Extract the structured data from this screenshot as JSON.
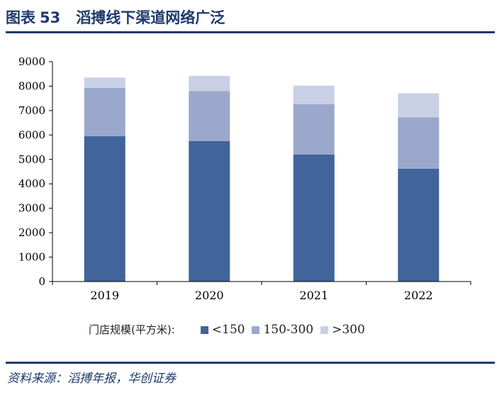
{
  "figure": {
    "label": "图表",
    "number": "53",
    "title": "滔搏线下渠道网络广泛"
  },
  "legend": {
    "title": "门店规模(平方米):",
    "items": [
      "<150",
      "150-300",
      ">300"
    ]
  },
  "source": "资料来源：滔搏年报，华创证券",
  "colors": {
    "accent": "#1f3a6d",
    "series_small": "#41649a",
    "series_mid": "#9aa8cc",
    "series_large": "#c9d0e6"
  },
  "chart_data": {
    "type": "bar",
    "stacked": true,
    "title": "滔搏线下渠道网络广泛",
    "xlabel": "",
    "ylabel": "",
    "categories": [
      "2019",
      "2020",
      "2021",
      "2022"
    ],
    "series": [
      {
        "name": "<150",
        "values": [
          5950,
          5750,
          5200,
          4620
        ]
      },
      {
        "name": "150-300",
        "values": [
          1980,
          2050,
          2060,
          2100
        ]
      },
      {
        "name": ">300",
        "values": [
          420,
          620,
          760,
          990
        ]
      }
    ],
    "ylim": [
      0,
      9000
    ],
    "yticks": [
      "0",
      "1000",
      "2000",
      "3000",
      "4000",
      "5000",
      "6000",
      "7000",
      "8000",
      "9000"
    ],
    "grid": false,
    "legend_position": "bottom"
  }
}
